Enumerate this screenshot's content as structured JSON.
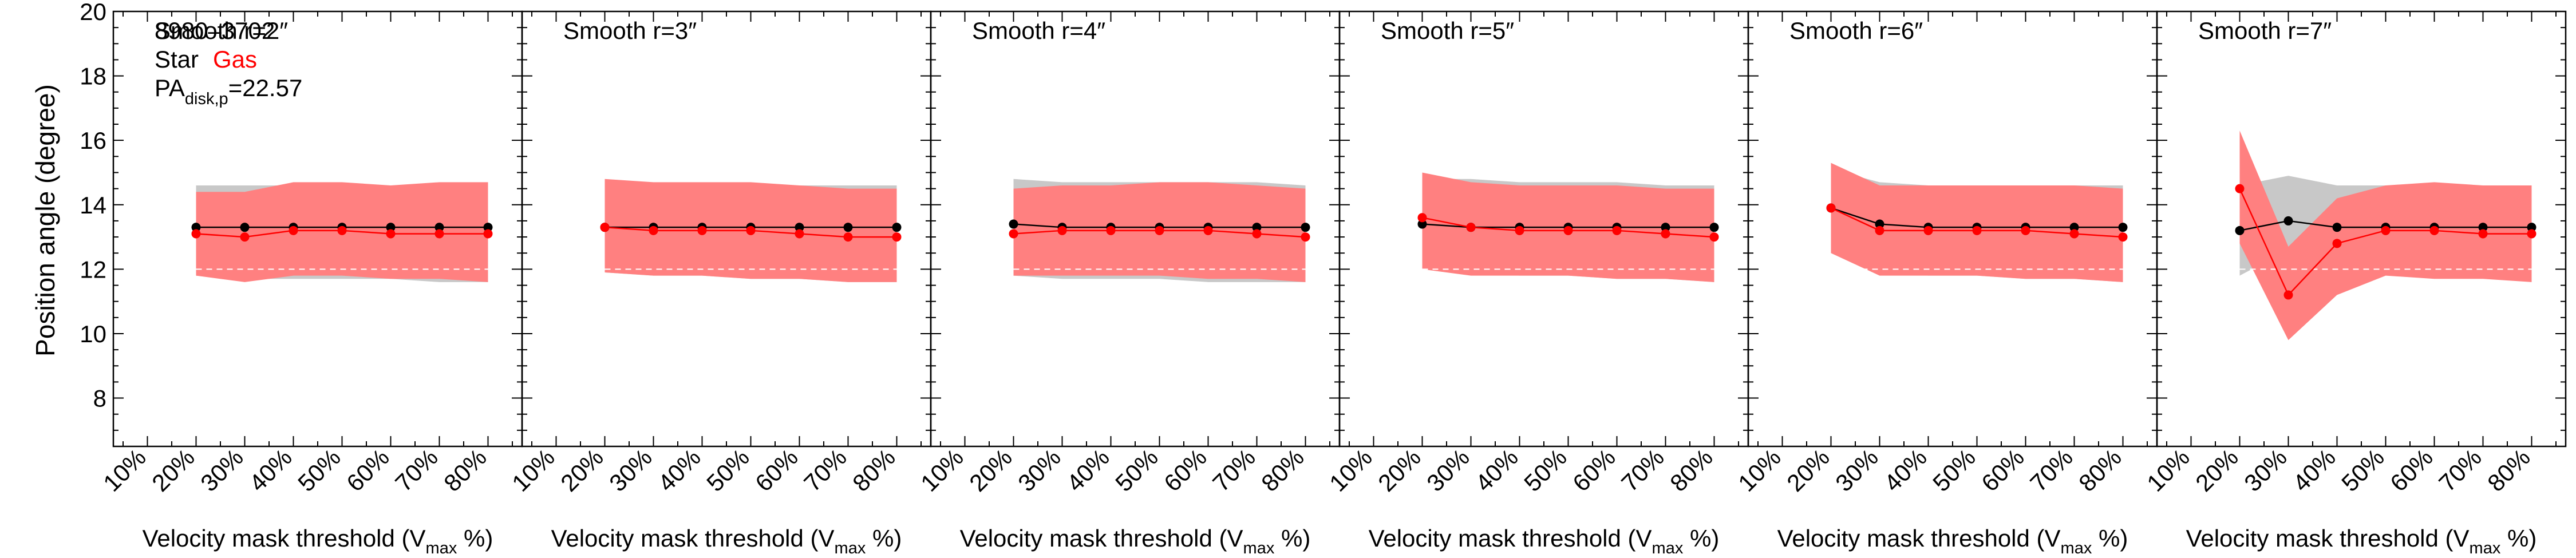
{
  "figure": {
    "ylabel": "Position angle (degree)",
    "xlabel_prefix": "Velocity mask threshold (V",
    "xlabel_sub": "max",
    "xlabel_suffix": " %)",
    "galaxy_id": "8980–3702",
    "legend_star": "Star",
    "legend_gas": "Gas",
    "pa_prefix": "PA",
    "pa_sub": "disk,p",
    "pa_value": "=22.57",
    "star_color": "#000000",
    "gas_color": "#ff0000",
    "star_band_color": "#c8c8c8",
    "gas_band_color": "#ff8080",
    "ref_line_color": "#ffffff"
  },
  "chart_data": [
    {
      "type": "line",
      "title": "Smooth r=2″",
      "x": [
        20,
        30,
        40,
        50,
        60,
        70,
        80
      ],
      "ylim": [
        6.5,
        20
      ],
      "reference_line": 12.0,
      "series": [
        {
          "name": "Star",
          "values": [
            13.3,
            13.3,
            13.3,
            13.3,
            13.3,
            13.3,
            13.3
          ],
          "band_low": [
            11.8,
            11.7,
            11.7,
            11.7,
            11.7,
            11.6,
            11.6
          ],
          "band_high": [
            14.6,
            14.6,
            14.6,
            14.6,
            14.6,
            14.6,
            14.6
          ]
        },
        {
          "name": "Gas",
          "values": [
            13.1,
            13.0,
            13.2,
            13.2,
            13.1,
            13.1,
            13.1
          ],
          "band_low": [
            11.8,
            11.6,
            11.8,
            11.8,
            11.7,
            11.7,
            11.6
          ],
          "band_high": [
            14.4,
            14.4,
            14.7,
            14.7,
            14.6,
            14.7,
            14.7
          ]
        }
      ]
    },
    {
      "type": "line",
      "title": "Smooth r=3″",
      "x": [
        20,
        30,
        40,
        50,
        60,
        70,
        80
      ],
      "ylim": [
        6.5,
        20
      ],
      "reference_line": 12.0,
      "series": [
        {
          "name": "Star",
          "values": [
            13.3,
            13.3,
            13.3,
            13.3,
            13.3,
            13.3,
            13.3
          ],
          "band_low": [
            11.9,
            11.8,
            11.8,
            11.7,
            11.7,
            11.6,
            11.6
          ],
          "band_high": [
            14.7,
            14.6,
            14.6,
            14.6,
            14.6,
            14.6,
            14.6
          ]
        },
        {
          "name": "Gas",
          "values": [
            13.3,
            13.2,
            13.2,
            13.2,
            13.1,
            13.0,
            13.0
          ],
          "band_low": [
            11.9,
            11.8,
            11.8,
            11.7,
            11.7,
            11.6,
            11.6
          ],
          "band_high": [
            14.8,
            14.7,
            14.7,
            14.7,
            14.6,
            14.5,
            14.5
          ]
        }
      ]
    },
    {
      "type": "line",
      "title": "Smooth r=4″",
      "x": [
        20,
        30,
        40,
        50,
        60,
        70,
        80
      ],
      "ylim": [
        6.5,
        20
      ],
      "reference_line": 12.0,
      "series": [
        {
          "name": "Star",
          "values": [
            13.4,
            13.3,
            13.3,
            13.3,
            13.3,
            13.3,
            13.3
          ],
          "band_low": [
            11.8,
            11.7,
            11.7,
            11.7,
            11.6,
            11.6,
            11.6
          ],
          "band_high": [
            14.8,
            14.7,
            14.7,
            14.7,
            14.7,
            14.7,
            14.6
          ]
        },
        {
          "name": "Gas",
          "values": [
            13.1,
            13.2,
            13.2,
            13.2,
            13.2,
            13.1,
            13.0
          ],
          "band_low": [
            11.8,
            11.8,
            11.8,
            11.8,
            11.7,
            11.7,
            11.6
          ],
          "band_high": [
            14.5,
            14.6,
            14.6,
            14.7,
            14.7,
            14.6,
            14.5
          ]
        }
      ]
    },
    {
      "type": "line",
      "title": "Smooth r=5″",
      "x": [
        20,
        30,
        40,
        50,
        60,
        70,
        80
      ],
      "ylim": [
        6.5,
        20
      ],
      "reference_line": 12.0,
      "series": [
        {
          "name": "Star",
          "values": [
            13.4,
            13.3,
            13.3,
            13.3,
            13.3,
            13.3,
            13.3
          ],
          "band_low": [
            12.2,
            11.9,
            11.8,
            11.8,
            11.7,
            11.7,
            11.6
          ],
          "band_high": [
            14.8,
            14.8,
            14.7,
            14.7,
            14.7,
            14.6,
            14.6
          ]
        },
        {
          "name": "Gas",
          "values": [
            13.6,
            13.3,
            13.2,
            13.2,
            13.2,
            13.1,
            13.0
          ],
          "band_low": [
            12.0,
            11.8,
            11.8,
            11.8,
            11.7,
            11.7,
            11.6
          ],
          "band_high": [
            15.0,
            14.7,
            14.6,
            14.6,
            14.6,
            14.5,
            14.5
          ]
        }
      ]
    },
    {
      "type": "line",
      "title": "Smooth r=6″",
      "x": [
        20,
        30,
        40,
        50,
        60,
        70,
        80
      ],
      "ylim": [
        6.5,
        20
      ],
      "reference_line": 12.0,
      "series": [
        {
          "name": "Star",
          "values": [
            13.9,
            13.4,
            13.3,
            13.3,
            13.3,
            13.3,
            13.3
          ],
          "band_low": [
            12.6,
            11.9,
            11.8,
            11.8,
            11.7,
            11.7,
            11.6
          ],
          "band_high": [
            15.1,
            14.7,
            14.6,
            14.6,
            14.6,
            14.6,
            14.6
          ]
        },
        {
          "name": "Gas",
          "values": [
            13.9,
            13.2,
            13.2,
            13.2,
            13.2,
            13.1,
            13.0
          ],
          "band_low": [
            12.5,
            11.8,
            11.8,
            11.8,
            11.7,
            11.7,
            11.6
          ],
          "band_high": [
            15.3,
            14.6,
            14.6,
            14.6,
            14.6,
            14.6,
            14.5
          ]
        }
      ]
    },
    {
      "type": "line",
      "title": "Smooth r=7″",
      "x": [
        20,
        30,
        40,
        50,
        60,
        70,
        80
      ],
      "ylim": [
        6.5,
        20
      ],
      "reference_line": 12.0,
      "series": [
        {
          "name": "Star",
          "values": [
            13.2,
            13.5,
            13.3,
            13.3,
            13.3,
            13.3,
            13.3
          ],
          "band_low": [
            11.8,
            12.6,
            12.0,
            11.9,
            11.8,
            11.8,
            11.7
          ],
          "band_high": [
            14.6,
            14.9,
            14.6,
            14.6,
            14.6,
            14.6,
            14.6
          ]
        },
        {
          "name": "Gas",
          "values": [
            14.5,
            11.2,
            12.8,
            13.2,
            13.2,
            13.1,
            13.1
          ],
          "band_low": [
            12.8,
            9.8,
            11.2,
            11.8,
            11.7,
            11.7,
            11.6
          ],
          "band_high": [
            16.3,
            12.7,
            14.2,
            14.6,
            14.7,
            14.6,
            14.6
          ]
        }
      ]
    }
  ]
}
